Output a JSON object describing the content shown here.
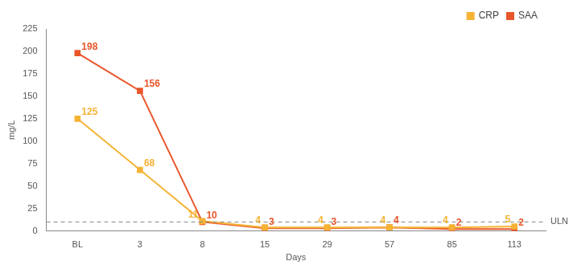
{
  "chart_data": {
    "type": "line",
    "categories": [
      "BL",
      "3",
      "8",
      "15",
      "29",
      "57",
      "85",
      "113"
    ],
    "series": [
      {
        "name": "CRP",
        "color": "#f5b335",
        "values": [
          125,
          68,
          11,
          4,
          4,
          4,
          4,
          5
        ],
        "marker": "square",
        "line_style": "solid"
      },
      {
        "name": "SAA",
        "color": "#e8562a",
        "values": [
          198,
          156,
          10,
          3,
          3,
          4,
          2,
          2
        ],
        "marker": "square",
        "line_style": "solid"
      }
    ],
    "x_label": "Days",
    "y_label": "mg/L",
    "ylim": [
      0,
      225
    ],
    "yticks": [
      0,
      25,
      50,
      75,
      100,
      125,
      150,
      175,
      200,
      225
    ],
    "annotations": [
      {
        "y": 10,
        "label": "ULN",
        "line_style": "dashed"
      }
    ],
    "legend": "upper right",
    "grid": false,
    "data_labels": true
  }
}
